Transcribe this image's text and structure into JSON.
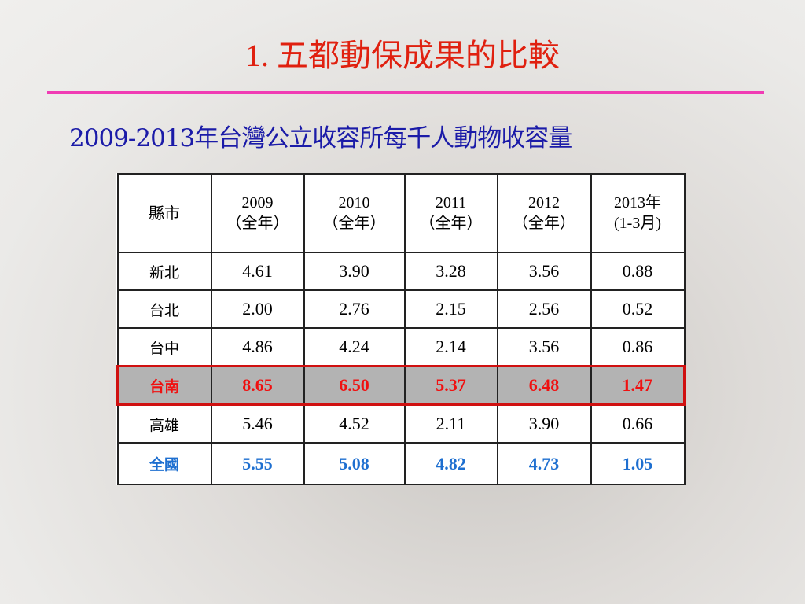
{
  "header": {
    "title": "1. 五都動保成果的比較",
    "subtitle": "2009-2013年台灣公立收容所每千人動物收容量"
  },
  "table": {
    "columns": [
      [
        "縣市"
      ],
      [
        "2009",
        "（全年）"
      ],
      [
        "2010",
        "（全年）"
      ],
      [
        "2011",
        "（全年）"
      ],
      [
        "2012",
        "（全年）"
      ],
      [
        "2013年",
        "(1-3月)"
      ]
    ],
    "rows": [
      [
        "新北",
        "4.61",
        "3.90",
        "3.28",
        "3.56",
        "0.88"
      ],
      [
        "台北",
        "2.00",
        "2.76",
        "2.15",
        "2.56",
        "0.52"
      ],
      [
        "台中",
        "4.86",
        "4.24",
        "2.14",
        "3.56",
        "0.86"
      ],
      [
        "台南",
        "8.65",
        "6.50",
        "5.37",
        "6.48",
        "1.47"
      ],
      [
        "高雄",
        "5.46",
        "4.52",
        "2.11",
        "3.90",
        "0.66"
      ],
      [
        "全國",
        "5.55",
        "5.08",
        "4.82",
        "4.73",
        "1.05"
      ]
    ]
  }
}
